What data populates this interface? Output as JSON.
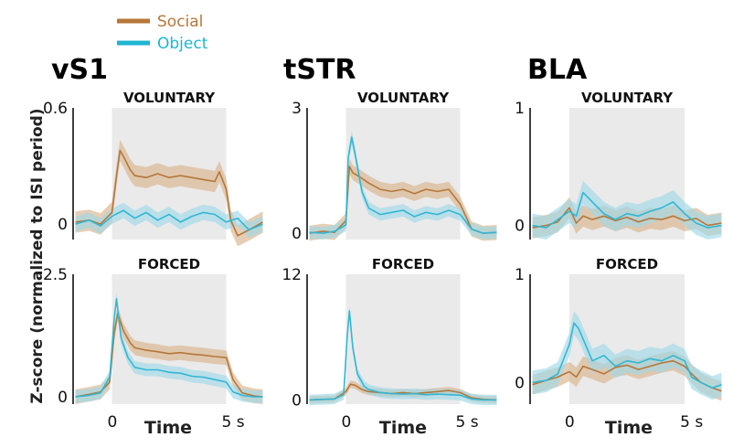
{
  "colors": {
    "social": "#b5773a",
    "social_band": "#d9b38c",
    "object": "#31b7d4",
    "object_band": "#9fd9e8",
    "window": "#eaeaea",
    "axis": "#000000"
  },
  "legend": [
    {
      "label": "Social",
      "color": "#b5773a"
    },
    {
      "label": "Object",
      "color": "#1fb4d2"
    }
  ],
  "ylabel": "Z-score (normalized to ISI period)",
  "xlabel": "Time",
  "chart_data": [
    {
      "type": "line",
      "region": "vS1",
      "condition": "VOLUNTARY",
      "xlim": [
        -1.7,
        6.7
      ],
      "ylim": [
        -0.08,
        0.6
      ],
      "window": [
        0,
        5
      ],
      "yticks": [
        {
          "v": 0,
          "label": "0"
        },
        {
          "v": 0.6,
          "label": "0.6"
        }
      ],
      "xticks": [],
      "series": [
        {
          "name": "Social",
          "err": 0.055,
          "x": [
            -1.6,
            -1,
            -0.5,
            0,
            0.2,
            0.35,
            0.5,
            0.8,
            1,
            1.5,
            2,
            2.5,
            3,
            3.5,
            4,
            4.5,
            4.7,
            5,
            5.2,
            5.5,
            6,
            6.6
          ],
          "y": [
            0.01,
            0.02,
            0.0,
            0.06,
            0.25,
            0.38,
            0.35,
            0.28,
            0.25,
            0.24,
            0.26,
            0.24,
            0.25,
            0.24,
            0.23,
            0.22,
            0.27,
            0.18,
            0.02,
            -0.06,
            -0.03,
            0.01
          ]
        },
        {
          "name": "Object",
          "err": 0.04,
          "x": [
            -1.6,
            -1,
            -0.5,
            0,
            0.5,
            1,
            1.5,
            2,
            2.5,
            3,
            3.5,
            4,
            4.5,
            5,
            5.5,
            6,
            6.6
          ],
          "y": [
            0.0,
            0.02,
            -0.01,
            0.04,
            0.07,
            0.03,
            0.06,
            0.02,
            0.05,
            0.01,
            0.04,
            0.06,
            0.05,
            0.01,
            0.03,
            -0.03,
            0.0
          ]
        }
      ]
    },
    {
      "type": "line",
      "region": "tSTR",
      "condition": "VOLUNTARY",
      "xlim": [
        -1.7,
        6.7
      ],
      "ylim": [
        -0.15,
        3
      ],
      "window": [
        0,
        5
      ],
      "yticks": [
        {
          "v": 0,
          "label": "0"
        },
        {
          "v": 3,
          "label": "3"
        }
      ],
      "xticks": [],
      "series": [
        {
          "name": "Social",
          "err": 0.18,
          "x": [
            -1.6,
            -1,
            -0.5,
            0,
            0.15,
            0.3,
            0.6,
            1,
            1.5,
            2,
            2.5,
            3,
            3.5,
            4,
            4.5,
            5,
            5.5,
            6,
            6.6
          ],
          "y": [
            0.0,
            0.05,
            0.02,
            0.3,
            1.6,
            1.45,
            1.35,
            1.2,
            1.05,
            1.0,
            1.05,
            0.95,
            1.05,
            1.0,
            1.05,
            0.7,
            0.1,
            0.0,
            0.02
          ]
        },
        {
          "name": "Object",
          "err": 0.15,
          "x": [
            -1.6,
            -1,
            -0.5,
            0,
            0.1,
            0.25,
            0.4,
            0.7,
            1,
            1.5,
            2,
            2.5,
            3,
            3.5,
            4,
            4.5,
            5,
            5.5,
            6,
            6.6
          ],
          "y": [
            0.02,
            0.0,
            0.05,
            0.2,
            1.8,
            2.3,
            1.9,
            1.0,
            0.6,
            0.45,
            0.5,
            0.55,
            0.4,
            0.5,
            0.45,
            0.55,
            0.45,
            0.1,
            0.0,
            0.02
          ]
        }
      ]
    },
    {
      "type": "line",
      "region": "BLA",
      "condition": "VOLUNTARY",
      "xlim": [
        -1.7,
        6.7
      ],
      "ylim": [
        -0.12,
        1
      ],
      "window": [
        0,
        5
      ],
      "yticks": [
        {
          "v": 0,
          "label": "0"
        },
        {
          "v": 1,
          "label": "1"
        }
      ],
      "xticks": [],
      "series": [
        {
          "name": "Social",
          "err": 0.09,
          "x": [
            -1.6,
            -1,
            -0.5,
            0,
            0.3,
            0.6,
            1,
            1.5,
            2,
            2.5,
            3,
            3.5,
            4,
            4.5,
            5,
            5.5,
            6,
            6.6
          ],
          "y": [
            -0.02,
            0.0,
            0.03,
            0.15,
            0.02,
            0.08,
            0.05,
            0.08,
            0.04,
            0.07,
            0.03,
            0.06,
            0.05,
            0.08,
            0.04,
            0.06,
            0.0,
            0.02
          ]
        },
        {
          "name": "Object",
          "err": 0.1,
          "x": [
            -1.6,
            -1,
            -0.5,
            0,
            0.3,
            0.6,
            1,
            1.5,
            2,
            2.5,
            3,
            3.5,
            4,
            4.5,
            5,
            5.5,
            6,
            6.6
          ],
          "y": [
            0.0,
            -0.02,
            0.05,
            0.12,
            0.08,
            0.28,
            0.2,
            0.1,
            0.05,
            0.1,
            0.08,
            0.12,
            0.15,
            0.2,
            0.1,
            0.02,
            -0.02,
            0.0
          ]
        }
      ]
    },
    {
      "type": "line",
      "region": "vS1",
      "condition": "FORCED",
      "xlim": [
        -1.7,
        6.7
      ],
      "ylim": [
        -0.15,
        2.5
      ],
      "window": [
        0,
        5
      ],
      "yticks": [
        {
          "v": 0,
          "label": "0"
        },
        {
          "v": 2.5,
          "label": "2.5"
        }
      ],
      "xticks": [
        {
          "v": 0,
          "label": "0"
        },
        {
          "v": 5,
          "label": "5 s"
        }
      ],
      "series": [
        {
          "name": "Social",
          "err": 0.15,
          "x": [
            -1.6,
            -1,
            -0.5,
            -0.1,
            0.1,
            0.25,
            0.5,
            0.8,
            1,
            1.5,
            2,
            2.5,
            3,
            3.5,
            4,
            4.5,
            5,
            5.3,
            5.7,
            6.2,
            6.6
          ],
          "y": [
            0.0,
            0.05,
            0.1,
            0.3,
            1.3,
            1.7,
            1.35,
            1.1,
            1.0,
            0.95,
            0.92,
            0.88,
            0.9,
            0.87,
            0.85,
            0.82,
            0.8,
            0.35,
            0.08,
            0.02,
            0.0
          ]
        },
        {
          "name": "Object",
          "err": 0.13,
          "x": [
            -1.6,
            -1,
            -0.5,
            -0.1,
            0.1,
            0.2,
            0.4,
            0.7,
            1,
            1.5,
            2,
            2.5,
            3,
            3.5,
            4,
            4.5,
            5,
            5.3,
            5.7,
            6.2,
            6.6
          ],
          "y": [
            0.0,
            0.03,
            0.08,
            0.4,
            1.6,
            2.0,
            1.2,
            0.8,
            0.6,
            0.55,
            0.55,
            0.5,
            0.48,
            0.42,
            0.4,
            0.35,
            0.3,
            0.1,
            0.03,
            0.0,
            0.0
          ]
        }
      ]
    },
    {
      "type": "line",
      "region": "tSTR",
      "condition": "FORCED",
      "xlim": [
        -1.7,
        6.7
      ],
      "ylim": [
        -0.4,
        12
      ],
      "window": [
        0,
        5
      ],
      "yticks": [
        {
          "v": 0,
          "label": "0"
        },
        {
          "v": 12,
          "label": "12"
        }
      ],
      "xticks": [
        {
          "v": 0,
          "label": "0"
        },
        {
          "v": 5,
          "label": "5 s"
        }
      ],
      "series": [
        {
          "name": "Social",
          "err": 0.35,
          "x": [
            -1.6,
            -1,
            -0.5,
            0,
            0.2,
            0.4,
            0.7,
            1,
            1.5,
            2,
            2.5,
            3,
            3.5,
            4,
            4.5,
            5,
            5.5,
            6,
            6.6
          ],
          "y": [
            0.0,
            0.05,
            0.1,
            0.8,
            1.5,
            1.4,
            1.0,
            0.8,
            0.7,
            0.6,
            0.7,
            0.6,
            0.7,
            0.8,
            0.9,
            0.7,
            0.2,
            0.05,
            0.0
          ]
        },
        {
          "name": "Object",
          "err": 0.5,
          "x": [
            -1.6,
            -1,
            -0.5,
            -0.1,
            0.05,
            0.15,
            0.3,
            0.5,
            0.8,
            1,
            1.5,
            2,
            2.5,
            3,
            3.5,
            4,
            4.5,
            5,
            5.5,
            6,
            6.6
          ],
          "y": [
            0.0,
            0.05,
            0.1,
            0.5,
            6.0,
            8.5,
            5.0,
            2.5,
            1.3,
            1.0,
            0.7,
            0.6,
            0.55,
            0.6,
            0.5,
            0.55,
            0.5,
            0.45,
            0.1,
            0.0,
            0.0
          ]
        }
      ]
    },
    {
      "type": "line",
      "region": "BLA",
      "condition": "FORCED",
      "xlim": [
        -1.7,
        6.7
      ],
      "ylim": [
        -0.2,
        1
      ],
      "window": [
        0,
        5
      ],
      "yticks": [
        {
          "v": 0,
          "label": "0"
        },
        {
          "v": 1,
          "label": "1"
        }
      ],
      "xticks": [
        {
          "v": 0,
          "label": "0"
        },
        {
          "v": 5,
          "label": "5 s"
        }
      ],
      "series": [
        {
          "name": "Social",
          "err": 0.09,
          "x": [
            -1.6,
            -1,
            -0.5,
            0,
            0.3,
            0.6,
            1,
            1.5,
            2,
            2.5,
            3,
            3.5,
            4,
            4.5,
            5,
            5.3,
            5.7,
            6.2,
            6.6
          ],
          "y": [
            -0.02,
            0.02,
            0.05,
            0.1,
            0.05,
            0.15,
            0.12,
            0.08,
            0.14,
            0.16,
            0.12,
            0.15,
            0.18,
            0.2,
            0.15,
            0.08,
            0.0,
            -0.05,
            -0.08
          ]
        },
        {
          "name": "Object",
          "err": 0.11,
          "x": [
            -1.6,
            -1,
            -0.5,
            0,
            0.2,
            0.4,
            0.7,
            1,
            1.5,
            2,
            2.5,
            3,
            3.5,
            4,
            4.5,
            5,
            5.3,
            5.7,
            6.2,
            6.6
          ],
          "y": [
            0.0,
            0.02,
            0.08,
            0.35,
            0.55,
            0.5,
            0.35,
            0.2,
            0.25,
            0.15,
            0.2,
            0.18,
            0.22,
            0.2,
            0.25,
            0.2,
            0.05,
            0.0,
            -0.05,
            -0.02
          ]
        }
      ]
    }
  ]
}
